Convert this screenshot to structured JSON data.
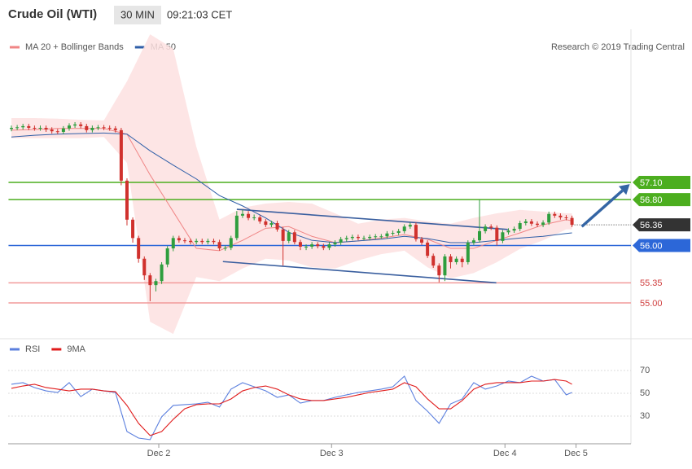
{
  "chart_data": {
    "type": "candlestick",
    "title": "Crude Oil (WTI)",
    "timeframe": "30 MIN",
    "time": "09:21:03 CET",
    "source": "Research © 2019 Trading Central",
    "xlim": [
      -0.5,
      107.2
    ],
    "xticks": [
      {
        "value": 25.5,
        "label": "Dec 2"
      },
      {
        "value": 55.4,
        "label": "Dec 3"
      },
      {
        "value": 85.4,
        "label": "Dec 4"
      },
      {
        "value": 97.7,
        "label": "Dec 5"
      }
    ],
    "ylim": [
      54.39,
      59.71
    ],
    "up_color": "#2e9e3e",
    "down_color": "#d0312d",
    "open": [
      58.03,
      58.05,
      58.06,
      58.08,
      58.05,
      58.04,
      58.05,
      58.02,
      57.99,
      57.98,
      58.04,
      58.09,
      58.11,
      58.08,
      58.01,
      58.05,
      58.06,
      58.05,
      58.04,
      58.01,
      57.13,
      56.45,
      56.13,
      55.77,
      55.48,
      55.31,
      55.38,
      55.67,
      55.95,
      56.13,
      56.09,
      56.08,
      56.06,
      56.08,
      56.06,
      56.08,
      56.06,
      55.95,
      55.96,
      56.13,
      56.52,
      56.55,
      56.48,
      56.49,
      56.42,
      56.36,
      56.39,
      56.28,
      56.08,
      56.23,
      56.06,
      55.98,
      55.98,
      56.02,
      55.99,
      55.96,
      56.02,
      56.05,
      56.11,
      56.13,
      56.15,
      56.13,
      56.13,
      56.15,
      56.16,
      56.16,
      56.21,
      56.22,
      56.25,
      56.33,
      56.36,
      56.11,
      56.05,
      55.82,
      55.65,
      55.48,
      55.81,
      55.71,
      55.77,
      55.71,
      56.05,
      56.09,
      56.25,
      56.33,
      56.31,
      56.08,
      56.23,
      56.26,
      56.29,
      56.39,
      56.42,
      56.38,
      56.36,
      56.4,
      56.55,
      56.52,
      56.49,
      56.48
    ],
    "high": [
      58.09,
      58.1,
      58.12,
      58.12,
      58.09,
      58.09,
      58.09,
      58.06,
      58.03,
      58.08,
      58.13,
      58.15,
      58.15,
      58.12,
      58.09,
      58.1,
      58.1,
      58.09,
      58.08,
      58.05,
      57.17,
      56.49,
      56.17,
      55.81,
      55.52,
      55.42,
      55.71,
      55.99,
      56.17,
      56.17,
      56.13,
      56.12,
      56.12,
      56.12,
      56.12,
      56.12,
      56.1,
      56.0,
      56.17,
      56.6,
      56.62,
      56.6,
      56.54,
      56.53,
      56.46,
      56.43,
      56.43,
      56.32,
      56.27,
      56.27,
      56.1,
      56.02,
      56.06,
      56.06,
      56.03,
      56.06,
      56.09,
      56.15,
      56.17,
      56.19,
      56.19,
      56.17,
      56.19,
      56.2,
      56.2,
      56.25,
      56.26,
      56.29,
      56.37,
      56.4,
      56.4,
      56.15,
      56.09,
      55.86,
      55.69,
      55.85,
      55.85,
      55.81,
      55.81,
      56.09,
      56.13,
      56.8,
      56.37,
      56.37,
      56.35,
      56.27,
      56.3,
      56.33,
      56.43,
      56.46,
      56.46,
      56.42,
      56.44,
      56.59,
      56.59,
      56.56,
      56.53,
      56.52
    ],
    "low": [
      57.99,
      58.01,
      58.02,
      58.01,
      58.0,
      58.0,
      57.98,
      57.95,
      57.94,
      57.94,
      58.0,
      58.05,
      58.04,
      57.97,
      57.97,
      58.01,
      58.01,
      58.0,
      57.97,
      57.05,
      56.35,
      56.05,
      55.7,
      55.4,
      55.03,
      55.2,
      55.33,
      55.62,
      55.9,
      56.05,
      56.04,
      56.02,
      56.02,
      56.02,
      56.02,
      56.02,
      55.91,
      55.91,
      55.92,
      56.09,
      56.48,
      56.44,
      56.44,
      56.38,
      56.32,
      56.32,
      56.24,
      55.65,
      56.04,
      56.02,
      55.92,
      55.92,
      55.94,
      55.95,
      55.92,
      55.92,
      55.98,
      56.01,
      56.07,
      56.09,
      56.09,
      56.09,
      56.09,
      56.11,
      56.12,
      56.12,
      56.17,
      56.18,
      56.21,
      56.29,
      56.07,
      56.01,
      55.78,
      55.61,
      55.36,
      55.38,
      55.6,
      55.67,
      55.62,
      55.67,
      56.01,
      56.05,
      56.21,
      56.27,
      56.0,
      56.04,
      56.19,
      56.22,
      56.25,
      56.35,
      56.34,
      56.32,
      56.32,
      56.36,
      56.48,
      56.45,
      56.44,
      56.32
    ],
    "close": [
      58.05,
      58.06,
      58.08,
      58.05,
      58.04,
      58.05,
      58.02,
      57.99,
      57.98,
      58.04,
      58.09,
      58.11,
      58.08,
      58.01,
      58.05,
      58.06,
      58.05,
      58.04,
      58.01,
      57.13,
      56.45,
      56.13,
      55.77,
      55.48,
      55.31,
      55.38,
      55.67,
      55.95,
      56.13,
      56.09,
      56.08,
      56.06,
      56.08,
      56.06,
      56.08,
      56.06,
      55.95,
      55.96,
      56.13,
      56.52,
      56.55,
      56.48,
      56.49,
      56.42,
      56.36,
      56.39,
      56.28,
      56.08,
      56.23,
      56.06,
      55.98,
      55.98,
      56.02,
      55.99,
      55.96,
      56.02,
      56.05,
      56.11,
      56.13,
      56.15,
      56.13,
      56.13,
      56.15,
      56.16,
      56.16,
      56.21,
      56.22,
      56.25,
      56.33,
      56.36,
      56.11,
      56.05,
      55.82,
      55.65,
      55.48,
      55.81,
      55.71,
      55.77,
      55.71,
      56.05,
      56.09,
      56.25,
      56.33,
      56.31,
      56.08,
      56.23,
      56.26,
      56.29,
      56.39,
      56.42,
      56.38,
      56.36,
      56.4,
      56.55,
      56.52,
      56.49,
      56.48,
      56.36
    ],
    "indicators": {
      "x": [
        0,
        4,
        8,
        12,
        16,
        20,
        24,
        28,
        32,
        36,
        40,
        44,
        48,
        52,
        56,
        60,
        64,
        68,
        72,
        76,
        80,
        84,
        88,
        92,
        96,
        97
      ],
      "band": {
        "color": "#fde0e0",
        "upper": [
          58.22,
          58.22,
          58.21,
          58.19,
          58.18,
          58.86,
          59.68,
          59.43,
          57.72,
          56.45,
          56.66,
          56.73,
          56.76,
          56.73,
          56.56,
          56.38,
          56.45,
          56.48,
          56.42,
          56.38,
          56.48,
          56.56,
          56.62,
          56.59,
          56.56,
          56.56
        ],
        "lower": [
          57.87,
          57.87,
          57.87,
          57.87,
          57.89,
          57.44,
          54.67,
          54.46,
          55.45,
          55.38,
          55.6,
          55.77,
          55.74,
          55.62,
          55.6,
          55.74,
          55.85,
          55.91,
          55.62,
          55.43,
          55.52,
          55.71,
          55.94,
          56.09,
          56.28,
          56.28
        ]
      },
      "series": [
        {
          "name": "MA 20 + Bollinger Bands",
          "color": "#f08585",
          "values": [
            58.01,
            58.02,
            58.04,
            58.04,
            58.04,
            57.94,
            57.23,
            56.59,
            55.95,
            55.91,
            56.09,
            56.3,
            56.33,
            56.16,
            56.05,
            56.08,
            56.13,
            56.19,
            56.11,
            55.95,
            55.95,
            56.09,
            56.22,
            56.36,
            56.45,
            56.43
          ]
        },
        {
          "name": "MA 50",
          "color": "#2f5fa8",
          "values": [
            57.89,
            57.92,
            57.94,
            57.95,
            57.96,
            57.94,
            57.65,
            57.4,
            57.16,
            56.87,
            56.69,
            56.48,
            56.23,
            56.09,
            56.05,
            56.08,
            56.11,
            56.16,
            56.12,
            56.05,
            56.05,
            56.09,
            56.13,
            56.16,
            56.21,
            56.22
          ]
        }
      ]
    },
    "levels": [
      {
        "value": 57.1,
        "label": "57.10",
        "color": "#4cae1f",
        "line": "solid",
        "tag": true
      },
      {
        "value": 56.8,
        "label": "56.80",
        "color": "#4cae1f",
        "line": "solid",
        "tag": true
      },
      {
        "value": 56.36,
        "label": "56.36",
        "color": "#333333",
        "line": "dotted",
        "tag": true
      },
      {
        "value": 56,
        "label": "56.00",
        "color": "#2c67d8",
        "line": "solid",
        "tag": true
      },
      {
        "value": 55.35,
        "label": "55.35",
        "color": "#f29a9a",
        "line": "solid",
        "tag": false
      },
      {
        "value": 55,
        "label": "55.00",
        "color": "#f29a9a",
        "line": "solid",
        "tag": false
      }
    ],
    "trendlines": [
      {
        "x": [
          39,
          85.9
        ],
        "y": [
          56.63,
          56.28
        ],
        "color": "#3a5f9f"
      },
      {
        "x": [
          36.6,
          83.9
        ],
        "y": [
          55.72,
          55.35
        ],
        "color": "#3a5f9f"
      }
    ],
    "arrow": {
      "x": [
        98.7,
        107
      ],
      "y": [
        56.33,
        57.07
      ],
      "color": "#3465a4"
    },
    "rsi": {
      "type": "line",
      "ylim": [
        5.7,
        80.7
      ],
      "yticks": [
        30,
        50,
        70
      ],
      "x": [
        0,
        2,
        4,
        6,
        8,
        10,
        12,
        14,
        16,
        18,
        20,
        22,
        24,
        26,
        28,
        30,
        32,
        34,
        36,
        38,
        40,
        42,
        44,
        46,
        48,
        50,
        52,
        54,
        56,
        58,
        60,
        62,
        64,
        66,
        68,
        70,
        72,
        74,
        76,
        78,
        80,
        82,
        84,
        86,
        88,
        90,
        92,
        94,
        96,
        97
      ],
      "series": [
        {
          "name": "RSI",
          "color": "#5b7fde",
          "values": [
            57.9,
            59.3,
            55.0,
            52.1,
            50.7,
            59.3,
            47.1,
            53.6,
            52.1,
            50.7,
            16.4,
            10.7,
            9.3,
            29.3,
            39.3,
            40.0,
            40.7,
            42.1,
            37.9,
            53.6,
            59.3,
            55.7,
            52.1,
            46.4,
            48.6,
            41.4,
            43.6,
            43.6,
            46.4,
            48.6,
            50.7,
            52.1,
            53.6,
            55.7,
            65.0,
            43.6,
            34.3,
            23.6,
            40.7,
            45.0,
            59.3,
            53.6,
            56.4,
            60.7,
            59.3,
            65.0,
            60.7,
            62.1,
            48.6,
            50.7
          ]
        },
        {
          "name": "9MA",
          "color": "#e01b1b",
          "values": [
            54.3,
            56.4,
            57.9,
            55.0,
            53.6,
            52.1,
            53.6,
            53.6,
            52.1,
            51.4,
            39.3,
            23.6,
            12.9,
            16.4,
            27.1,
            36.4,
            40.0,
            40.7,
            40.7,
            45.0,
            52.1,
            55.0,
            56.4,
            53.6,
            48.6,
            45.0,
            43.6,
            43.6,
            45.0,
            46.4,
            48.6,
            50.7,
            52.1,
            53.6,
            59.3,
            55.7,
            45.0,
            36.4,
            36.4,
            43.6,
            53.6,
            57.9,
            59.3,
            59.3,
            59.3,
            60.7,
            60.7,
            62.1,
            60.7,
            57.9
          ]
        }
      ]
    }
  }
}
